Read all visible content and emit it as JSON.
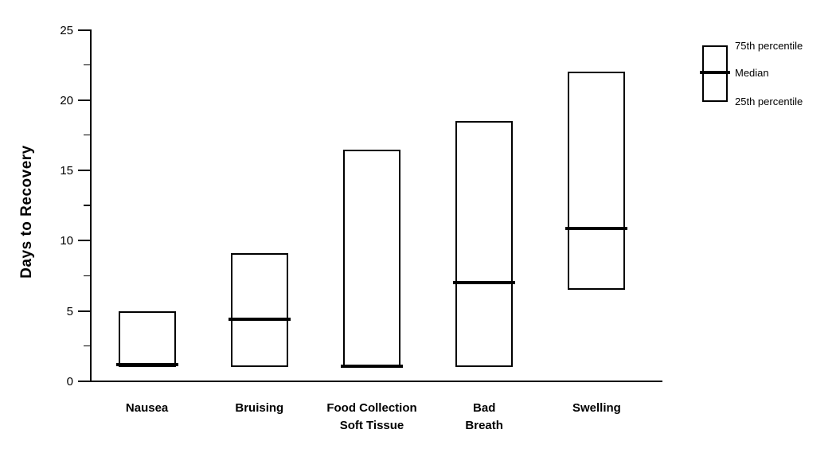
{
  "chart_data": {
    "type": "box",
    "title": "",
    "xlabel": "",
    "ylabel": "Days to Recovery",
    "ylim": [
      0,
      25
    ],
    "y_major_ticks": [
      0,
      5,
      10,
      15,
      20,
      25
    ],
    "y_minor_ticks": [
      2.5,
      7.5,
      12.5,
      17.5,
      22.5
    ],
    "grid": false,
    "legend": {
      "position": "top-right",
      "items": [
        "75th percentile",
        "Median",
        "25th percentile"
      ]
    },
    "categories": [
      "Nausea",
      "Bruising",
      "Food Collection Soft Tissue",
      "Bad Breath",
      "Swelling"
    ],
    "category_label_lines": [
      [
        "Nausea"
      ],
      [
        "Bruising"
      ],
      [
        "Food Collection",
        "Soft Tissue"
      ],
      [
        "Bad",
        "Breath"
      ],
      [
        "Swelling"
      ]
    ],
    "series": [
      {
        "category": "Nausea",
        "q25": 1.0,
        "median": 1.2,
        "q75": 5.0
      },
      {
        "category": "Bruising",
        "q25": 1.0,
        "median": 4.4,
        "q75": 9.1
      },
      {
        "category": "Food Collection Soft Tissue",
        "q25": 1.0,
        "median": 1.1,
        "q75": 16.5
      },
      {
        "category": "Bad Breath",
        "q25": 1.0,
        "median": 7.0,
        "q75": 18.5
      },
      {
        "category": "Swelling",
        "q25": 6.5,
        "median": 10.9,
        "q75": 22.0
      }
    ],
    "colors": {
      "background": "#ffffff",
      "box_stroke": "#000000",
      "median_line": "#000000",
      "text": "#000000"
    }
  }
}
